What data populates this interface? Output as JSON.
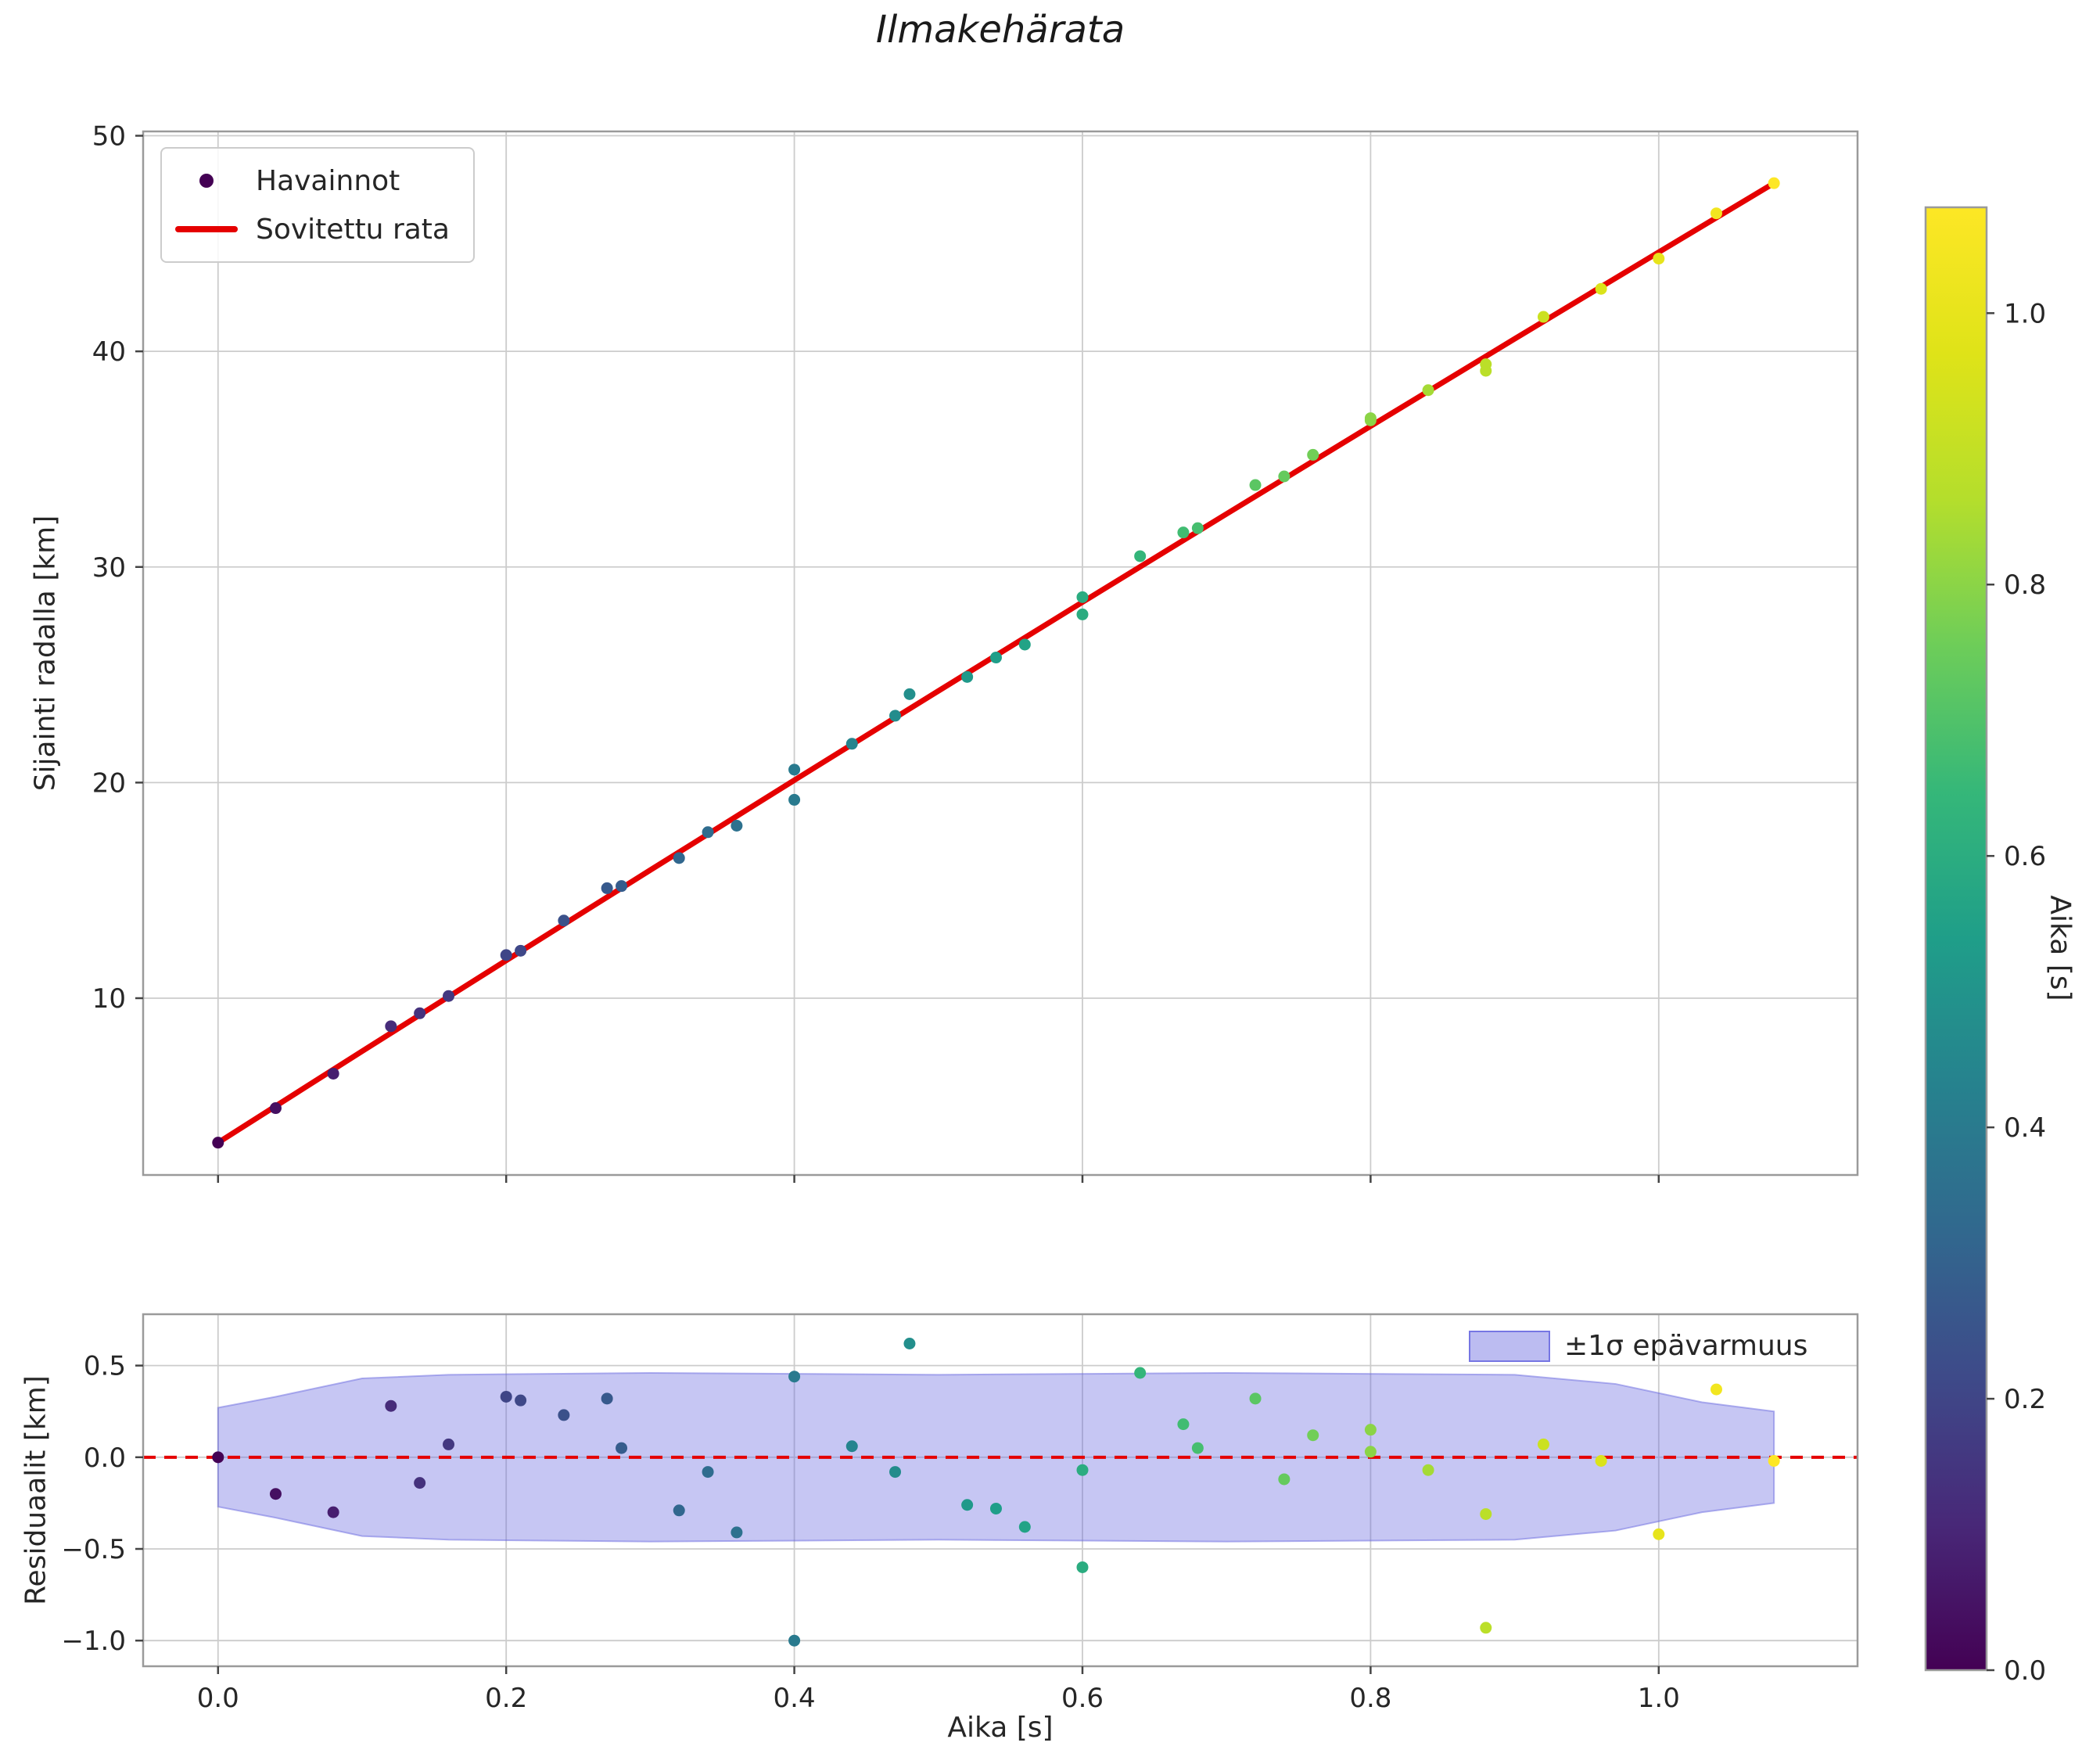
{
  "figure": {
    "title": "Ilmakehärata",
    "background": "#ffffff"
  },
  "colors": {
    "fit_line": "#e50000",
    "zero_line": "#e50000",
    "band_fill": "#6a6ae0",
    "band_fill_opacity": 0.38,
    "grid": "#cccccc",
    "spine": "#9a9a9a",
    "tick": "#444444",
    "text": "#262626",
    "legend_marker_dot": "#440154",
    "legend_border": "#cccccc"
  },
  "chart_data": [
    {
      "type": "scatter",
      "title": "Ilmakehärata",
      "xlabel": "",
      "ylabel": "Sijainti radalla [km]",
      "xlim": [
        -0.052,
        1.138
      ],
      "ylim": [
        1.8,
        50.2
      ],
      "xticks": [
        0.0,
        0.2,
        0.4,
        0.6,
        0.8,
        1.0
      ],
      "xticklabels": [],
      "yticks": [
        10,
        20,
        30,
        40,
        50
      ],
      "yticklabels": [
        "10",
        "20",
        "30",
        "40",
        "50"
      ],
      "grid": true,
      "legend": [
        "Havainnot",
        "Sovitettu rata"
      ],
      "legend_loc": "upper left",
      "colormap": "viridis",
      "points": {
        "x": [
          0.0,
          0.04,
          0.08,
          0.12,
          0.14,
          0.16,
          0.2,
          0.21,
          0.24,
          0.27,
          0.28,
          0.32,
          0.34,
          0.36,
          0.4,
          0.4,
          0.44,
          0.47,
          0.48,
          0.52,
          0.54,
          0.56,
          0.6,
          0.6,
          0.64,
          0.67,
          0.68,
          0.72,
          0.74,
          0.76,
          0.8,
          0.8,
          0.84,
          0.88,
          0.88,
          0.92,
          0.96,
          1.0,
          1.04,
          1.08
        ],
        "y": [
          3.3,
          4.9,
          6.5,
          8.7,
          9.3,
          10.1,
          12.0,
          12.2,
          13.6,
          15.1,
          15.2,
          16.5,
          17.7,
          18.0,
          20.6,
          19.2,
          21.8,
          23.1,
          24.1,
          24.9,
          25.8,
          26.4,
          27.8,
          28.6,
          30.5,
          31.6,
          31.8,
          33.8,
          34.2,
          35.2,
          36.8,
          36.9,
          38.2,
          39.1,
          39.4,
          41.6,
          42.9,
          44.3,
          46.4,
          47.8
        ]
      },
      "fit_line": {
        "x": [
          0.0,
          0.1,
          0.2,
          0.3,
          0.4,
          0.5,
          0.6,
          0.7,
          0.8,
          0.9,
          1.0,
          1.08
        ],
        "y": [
          3.3,
          7.54,
          11.75,
          15.94,
          20.11,
          24.25,
          28.37,
          32.46,
          36.53,
          40.58,
          44.6,
          47.8
        ]
      }
    },
    {
      "type": "scatter",
      "title": "",
      "xlabel": "Aika [s]",
      "ylabel": "Residuaalit [km]",
      "xlim": [
        -0.052,
        1.138
      ],
      "ylim": [
        -1.14,
        0.78
      ],
      "xticks": [
        0.0,
        0.2,
        0.4,
        0.6,
        0.8,
        1.0
      ],
      "xticklabels": [
        "0.0",
        "0.2",
        "0.4",
        "0.6",
        "0.8",
        "1.0"
      ],
      "yticks": [
        -1.0,
        -0.5,
        0.0,
        0.5
      ],
      "yticklabels": [
        "−1.0",
        "−0.5",
        "0.0",
        "0.5"
      ],
      "grid": true,
      "legend": [
        "±1σ epävarmuus"
      ],
      "legend_loc": "upper right",
      "colormap": "viridis",
      "zero_line": 0.0,
      "points": {
        "x": [
          0.0,
          0.04,
          0.08,
          0.12,
          0.14,
          0.16,
          0.2,
          0.21,
          0.24,
          0.27,
          0.28,
          0.32,
          0.34,
          0.36,
          0.4,
          0.4,
          0.44,
          0.47,
          0.48,
          0.52,
          0.54,
          0.56,
          0.6,
          0.6,
          0.64,
          0.67,
          0.68,
          0.72,
          0.74,
          0.76,
          0.8,
          0.8,
          0.84,
          0.88,
          0.88,
          0.92,
          0.96,
          1.0,
          1.04,
          1.08
        ],
        "y": [
          0.0,
          -0.2,
          -0.3,
          0.28,
          -0.14,
          0.07,
          0.33,
          0.31,
          0.23,
          0.32,
          0.05,
          -0.29,
          -0.08,
          -0.41,
          0.44,
          -1.0,
          0.06,
          -0.08,
          0.62,
          -0.26,
          -0.28,
          -0.38,
          -0.6,
          -0.07,
          0.46,
          0.18,
          0.05,
          0.32,
          -0.12,
          0.12,
          0.03,
          0.15,
          -0.07,
          -0.31,
          -0.93,
          0.07,
          -0.02,
          -0.42,
          0.37,
          -0.02
        ]
      },
      "band": {
        "x": [
          0.0,
          0.04,
          0.1,
          0.16,
          0.3,
          0.5,
          0.7,
          0.9,
          0.97,
          1.03,
          1.08
        ],
        "upper": [
          0.27,
          0.33,
          0.43,
          0.45,
          0.46,
          0.45,
          0.46,
          0.45,
          0.4,
          0.3,
          0.25
        ],
        "lower": [
          -0.27,
          -0.33,
          -0.43,
          -0.45,
          -0.46,
          -0.45,
          -0.46,
          -0.45,
          -0.4,
          -0.3,
          -0.25
        ]
      }
    }
  ],
  "colorbar": {
    "label": "Aika [s]",
    "ticks": [
      0.0,
      0.2,
      0.4,
      0.6,
      0.8,
      1.0
    ],
    "ticklabels": [
      "0.0",
      "0.2",
      "0.4",
      "0.6",
      "0.8",
      "1.0"
    ],
    "vmin": 0.0,
    "vmax": 1.078,
    "colormap": "viridis"
  }
}
